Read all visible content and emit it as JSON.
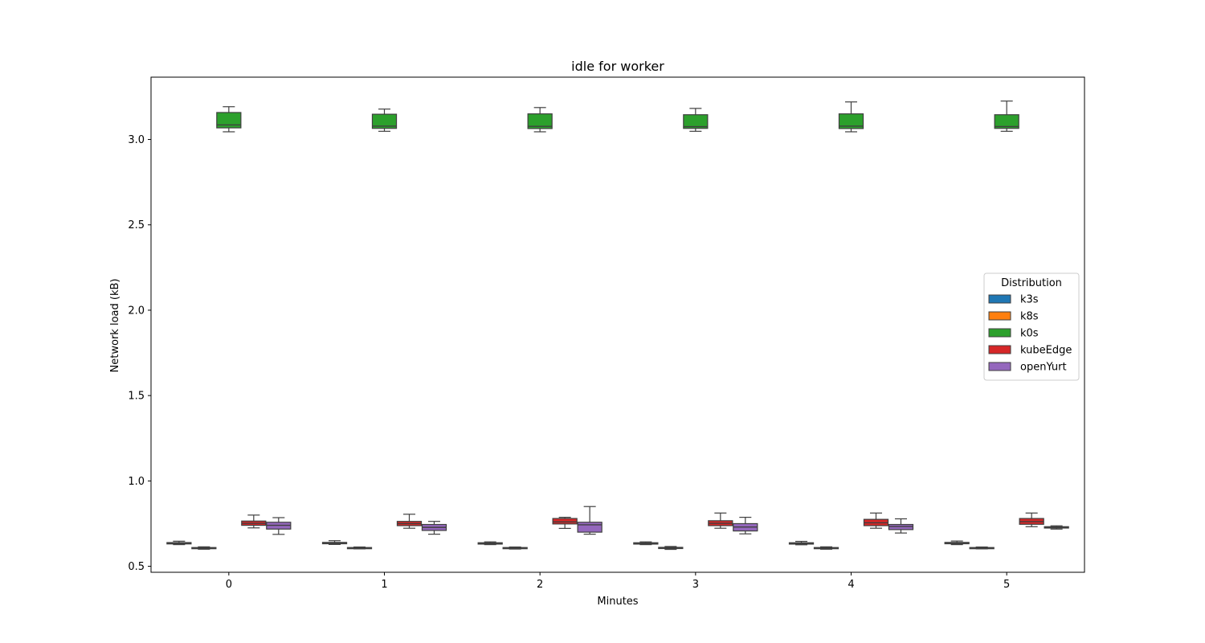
{
  "chart_data": {
    "type": "box",
    "title": "idle for worker",
    "xlabel": "Minutes",
    "ylabel": "Network load (kB)",
    "categories": [
      "0",
      "1",
      "2",
      "3",
      "4",
      "5"
    ],
    "yticks": [
      "0.5",
      "1.0",
      "1.5",
      "2.0",
      "2.5",
      "3.0"
    ],
    "ylim": [
      0.465,
      3.365
    ],
    "legend": {
      "title": "Distribution",
      "placement": "center-right"
    },
    "series": [
      {
        "name": "k3s",
        "color": "#1f77b4",
        "boxes": [
          {
            "min": 0.627,
            "q1": 0.631,
            "median": 0.635,
            "q3": 0.639,
            "max": 0.647
          },
          {
            "min": 0.628,
            "q1": 0.632,
            "median": 0.636,
            "q3": 0.64,
            "max": 0.65
          },
          {
            "min": 0.627,
            "q1": 0.63,
            "median": 0.634,
            "q3": 0.638,
            "max": 0.643
          },
          {
            "min": 0.627,
            "q1": 0.63,
            "median": 0.634,
            "q3": 0.638,
            "max": 0.643
          },
          {
            "min": 0.626,
            "q1": 0.63,
            "median": 0.634,
            "q3": 0.638,
            "max": 0.646
          },
          {
            "min": 0.627,
            "q1": 0.632,
            "median": 0.636,
            "q3": 0.64,
            "max": 0.648
          }
        ]
      },
      {
        "name": "k8s",
        "color": "#ff7f0e",
        "boxes": [
          {
            "min": 0.6,
            "q1": 0.604,
            "median": 0.607,
            "q3": 0.61,
            "max": 0.614
          },
          {
            "min": 0.602,
            "q1": 0.604,
            "median": 0.607,
            "q3": 0.61,
            "max": 0.613
          },
          {
            "min": 0.601,
            "q1": 0.604,
            "median": 0.607,
            "q3": 0.61,
            "max": 0.613
          },
          {
            "min": 0.599,
            "q1": 0.604,
            "median": 0.607,
            "q3": 0.611,
            "max": 0.616
          },
          {
            "min": 0.6,
            "q1": 0.604,
            "median": 0.607,
            "q3": 0.61,
            "max": 0.614
          },
          {
            "min": 0.602,
            "q1": 0.604,
            "median": 0.607,
            "q3": 0.61,
            "max": 0.613
          }
        ]
      },
      {
        "name": "k0s",
        "color": "#2ca02c",
        "boxes": [
          {
            "min": 3.045,
            "q1": 3.068,
            "median": 3.085,
            "q3": 3.158,
            "max": 3.192
          },
          {
            "min": 3.048,
            "q1": 3.065,
            "median": 3.078,
            "q3": 3.148,
            "max": 3.178
          },
          {
            "min": 3.045,
            "q1": 3.064,
            "median": 3.077,
            "q3": 3.15,
            "max": 3.187
          },
          {
            "min": 3.048,
            "q1": 3.065,
            "median": 3.075,
            "q3": 3.145,
            "max": 3.182
          },
          {
            "min": 3.045,
            "q1": 3.064,
            "median": 3.078,
            "q3": 3.15,
            "max": 3.22
          },
          {
            "min": 3.048,
            "q1": 3.065,
            "median": 3.076,
            "q3": 3.145,
            "max": 3.225
          }
        ]
      },
      {
        "name": "kubeEdge",
        "color": "#d62728",
        "boxes": [
          {
            "min": 0.725,
            "q1": 0.74,
            "median": 0.752,
            "q3": 0.765,
            "max": 0.8
          },
          {
            "min": 0.723,
            "q1": 0.738,
            "median": 0.75,
            "q3": 0.763,
            "max": 0.805
          },
          {
            "min": 0.722,
            "q1": 0.748,
            "median": 0.76,
            "q3": 0.78,
            "max": 0.787
          },
          {
            "min": 0.723,
            "q1": 0.738,
            "median": 0.752,
            "q3": 0.767,
            "max": 0.812
          },
          {
            "min": 0.723,
            "q1": 0.738,
            "median": 0.755,
            "q3": 0.775,
            "max": 0.812
          },
          {
            "min": 0.732,
            "q1": 0.746,
            "median": 0.762,
            "q3": 0.78,
            "max": 0.812
          }
        ]
      },
      {
        "name": "openYurt",
        "color": "#9467bd",
        "boxes": [
          {
            "min": 0.687,
            "q1": 0.718,
            "median": 0.74,
            "q3": 0.758,
            "max": 0.785
          },
          {
            "min": 0.688,
            "q1": 0.71,
            "median": 0.728,
            "q3": 0.745,
            "max": 0.763
          },
          {
            "min": 0.688,
            "q1": 0.7,
            "median": 0.743,
            "q3": 0.758,
            "max": 0.85
          },
          {
            "min": 0.69,
            "q1": 0.707,
            "median": 0.73,
            "q3": 0.75,
            "max": 0.787
          },
          {
            "min": 0.695,
            "q1": 0.715,
            "median": 0.733,
            "q3": 0.745,
            "max": 0.778
          },
          {
            "min": 0.718,
            "q1": 0.724,
            "median": 0.728,
            "q3": 0.732,
            "max": 0.737
          }
        ]
      }
    ]
  }
}
